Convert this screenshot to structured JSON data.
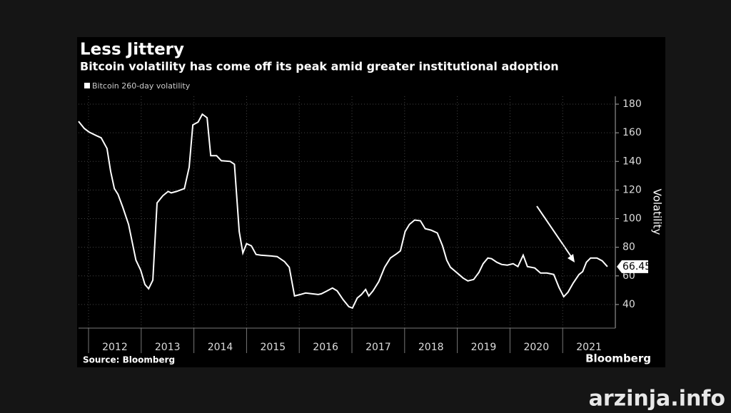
{
  "chart_data": {
    "type": "line",
    "title": "Less Jittery",
    "subtitle": "Bitcoin volatility has come off its peak amid greater institutional adoption",
    "y_label": "Volatility",
    "source": "Source: Bloomberg",
    "brand": "Bloomberg",
    "watermark": "arzinja.info",
    "legend_position": "top-left",
    "grid": true,
    "xlim": [
      2011.81,
      2022.0
    ],
    "xticks": [
      {
        "value": 2012,
        "label": "2012"
      },
      {
        "value": 2013,
        "label": "2013"
      },
      {
        "value": 2014,
        "label": "2014"
      },
      {
        "value": 2015,
        "label": "2015"
      },
      {
        "value": 2016,
        "label": "2016"
      },
      {
        "value": 2017,
        "label": "2017"
      },
      {
        "value": 2018,
        "label": "2018"
      },
      {
        "value": 2019,
        "label": "2019"
      },
      {
        "value": 2020,
        "label": "2020"
      },
      {
        "value": 2021,
        "label": "2021"
      }
    ],
    "ylim": [
      23.5,
      185.5
    ],
    "yticks": [
      40,
      60,
      80,
      100,
      120,
      140,
      160,
      180
    ],
    "x": [
      2011.81,
      2011.92,
      2012.01,
      2012.15,
      2012.24,
      2012.35,
      2012.42,
      2012.49,
      2012.56,
      2012.65,
      2012.76,
      2012.9,
      2012.99,
      2013.07,
      2013.14,
      2013.22,
      2013.3,
      2013.41,
      2013.51,
      2013.57,
      2013.67,
      2013.82,
      2013.91,
      2013.98,
      2014.08,
      2014.16,
      2014.25,
      2014.32,
      2014.43,
      2014.52,
      2014.69,
      2014.77,
      2014.86,
      2014.93,
      2015.0,
      2015.09,
      2015.18,
      2015.27,
      2015.45,
      2015.58,
      2015.72,
      2015.81,
      2015.91,
      2016.02,
      2016.12,
      2016.36,
      2016.42,
      2016.53,
      2016.63,
      2016.72,
      2016.83,
      2016.94,
      2017.01,
      2017.1,
      2017.18,
      2017.26,
      2017.32,
      2017.4,
      2017.51,
      2017.62,
      2017.73,
      2017.85,
      2017.92,
      2018.01,
      2018.09,
      2018.19,
      2018.3,
      2018.39,
      2018.5,
      2018.62,
      2018.72,
      2018.8,
      2018.87,
      2019.0,
      2019.11,
      2019.2,
      2019.31,
      2019.41,
      2019.49,
      2019.58,
      2019.65,
      2019.75,
      2019.84,
      2019.95,
      2020.06,
      2020.15,
      2020.25,
      2020.33,
      2020.47,
      2020.58,
      2020.7,
      2020.83,
      2020.93,
      2021.02,
      2021.1,
      2021.2,
      2021.31,
      2021.38,
      2021.45,
      2021.53,
      2021.65,
      2021.75,
      2021.85
    ],
    "series": [
      {
        "name": "Bitcoin 260-day volatility",
        "color": "#ffffff",
        "values": [
          168,
          163,
          160.5,
          158,
          156.5,
          149,
          133,
          121,
          117,
          108,
          96,
          71,
          64,
          54,
          51,
          57,
          111,
          116,
          119,
          118,
          119,
          121,
          136,
          165.5,
          167.5,
          173,
          170.5,
          144,
          144,
          140.5,
          140,
          138,
          91,
          76,
          82.5,
          81,
          75,
          74.5,
          74,
          73.5,
          70,
          66,
          46,
          47,
          48,
          47,
          47.5,
          49.5,
          51.5,
          49.5,
          43.5,
          38.5,
          37.5,
          44.5,
          47,
          50.5,
          46,
          49.5,
          56,
          66,
          72.5,
          75.5,
          77.5,
          91,
          96,
          99,
          98.5,
          93,
          92,
          90,
          81,
          71,
          66,
          62,
          58.5,
          56.5,
          57.5,
          62.5,
          68.5,
          72.5,
          72,
          69.5,
          68,
          67.5,
          68.5,
          66.5,
          74.5,
          66.5,
          65.5,
          62,
          62,
          61,
          52,
          45.5,
          48.5,
          55,
          61,
          63,
          69.5,
          72.5,
          72.5,
          70.5,
          66.45
        ]
      }
    ]
  }
}
